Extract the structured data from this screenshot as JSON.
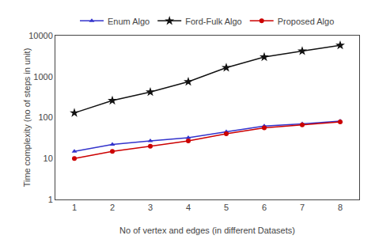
{
  "chart_data": {
    "type": "line",
    "x": [
      1,
      2,
      3,
      4,
      5,
      6,
      7,
      8
    ],
    "series": [
      {
        "name": "Enum Algo",
        "color": "#3333cc",
        "marker": "triangle-up",
        "line_style": "solid",
        "values": [
          15,
          22,
          27,
          32,
          45,
          62,
          70,
          82
        ]
      },
      {
        "name": "Ford-Fulk Algo",
        "color": "#111111",
        "marker": "star",
        "line_style": "solid",
        "values": [
          130,
          260,
          420,
          750,
          1650,
          3000,
          4200,
          5800
        ]
      },
      {
        "name": "Proposed Algo",
        "color": "#cc0000",
        "marker": "circle",
        "line_style": "solid",
        "values": [
          10,
          15,
          20,
          27,
          40,
          56,
          66,
          78
        ]
      }
    ],
    "xlabel": "No of vertex and edges (in different Datasets)",
    "ylabel": "Time complexity (no of steps in unit)",
    "xlim": [
      0.5,
      8.5
    ],
    "xticks": [
      1,
      2,
      3,
      4,
      5,
      6,
      7,
      8
    ],
    "ylim": [
      1,
      10000
    ],
    "yticks": [
      1,
      10,
      100,
      1000,
      10000
    ],
    "log": "y",
    "grid": false,
    "legend": "top"
  }
}
